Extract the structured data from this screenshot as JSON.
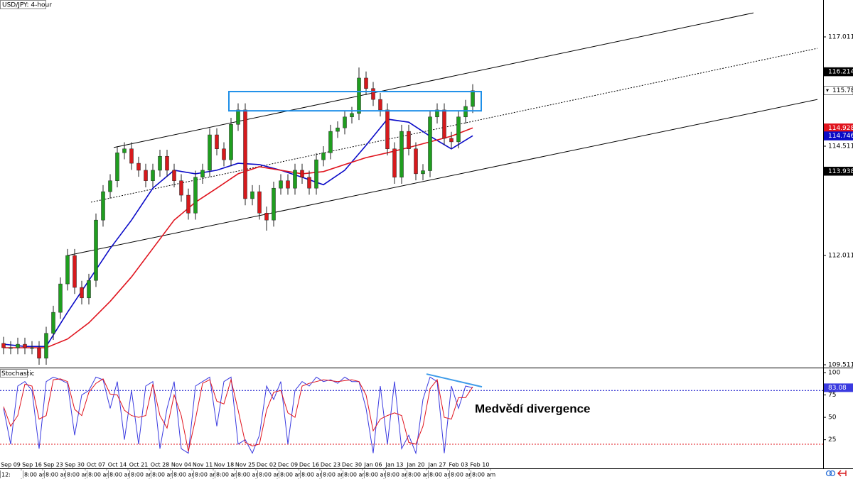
{
  "chart_data": [
    {
      "type": "candlestick",
      "title": "USD/JPY: 4-hour",
      "categories": [
        null,
        "Sep 09",
        null,
        null,
        "Sep 16",
        null,
        null,
        "Sep 23",
        null,
        null,
        "Sep 30",
        null,
        null,
        "Oct 07",
        null,
        null,
        "Oct 14",
        null,
        null,
        "Oct 21",
        null,
        null,
        "Oct 28",
        null,
        null,
        "Nov 04",
        null,
        null,
        "Nov 11",
        null,
        null,
        "Nov 18",
        null,
        null,
        "Nov 25",
        null,
        null,
        "Dec 02",
        null,
        null,
        "Dec 09",
        null,
        null,
        "Dec 16",
        null,
        null,
        "Dec 23",
        null,
        null,
        "Dec 30",
        null,
        null,
        "Jan 06",
        null,
        null,
        "Jan 13",
        null,
        null,
        "Jan 20",
        null,
        null,
        "Jan 27",
        null,
        null,
        "Feb 03",
        null,
        null,
        "Feb 10"
      ],
      "time_labels": [
        "12:",
        "8:00 am",
        "8:00 am",
        "8:00 am",
        "8:00 am",
        "8:00 am",
        "8:00 am",
        "8:00 am",
        "8:00 am",
        "8:00 am",
        "8:00 am",
        "8:00 am",
        "8:00 am",
        "8:00 am",
        "8:00 am",
        "8:00 am",
        "8:00 am",
        "8:00 am",
        "8:00 am",
        "8:00 am",
        "8:00 am",
        "8:00 am",
        "8:00 am"
      ],
      "open": [
        110.0,
        109.9,
        109.9,
        109.98,
        109.9,
        109.9,
        109.66,
        110.23,
        110.71,
        111.36,
        112.01,
        111.28,
        111.04,
        111.44,
        112.82,
        113.47,
        113.72,
        114.36,
        114.45,
        114.12,
        113.96,
        113.72,
        113.96,
        114.28,
        113.96,
        113.72,
        113.39,
        112.98,
        113.8,
        113.96,
        114.77,
        114.45,
        114.2,
        115.01,
        115.34,
        113.31,
        113.47,
        112.98,
        112.82,
        113.55,
        113.72,
        113.55,
        113.96,
        113.8,
        113.55,
        114.2,
        114.36,
        114.85,
        114.93,
        115.18,
        115.26,
        116.07,
        115.83,
        115.58,
        115.34,
        114.45,
        113.8,
        114.85,
        114.45,
        113.88,
        113.95,
        115.18,
        115.34,
        114.69,
        114.61,
        115.18,
        115.42,
        null
      ],
      "high": [
        110.15,
        110.05,
        110.13,
        110.13,
        110.05,
        110.05,
        110.38,
        110.86,
        111.51,
        112.16,
        112.16,
        111.43,
        111.59,
        112.97,
        113.62,
        113.87,
        114.51,
        114.6,
        114.6,
        114.27,
        114.11,
        114.11,
        114.43,
        114.43,
        114.11,
        113.87,
        113.54,
        113.95,
        114.11,
        114.92,
        114.92,
        114.6,
        115.16,
        115.49,
        115.49,
        113.62,
        113.62,
        113.13,
        113.7,
        113.87,
        113.87,
        114.11,
        114.11,
        113.95,
        114.35,
        114.51,
        115.0,
        115.08,
        115.33,
        115.41,
        116.31,
        116.22,
        115.98,
        115.73,
        115.49,
        114.6,
        115.0,
        115.0,
        114.6,
        114.1,
        115.33,
        115.49,
        115.49,
        114.84,
        115.33,
        115.57,
        115.93,
        null
      ],
      "low": [
        109.75,
        109.75,
        109.75,
        109.75,
        109.75,
        109.51,
        109.51,
        110.08,
        110.56,
        111.21,
        111.13,
        110.89,
        110.89,
        111.29,
        112.67,
        113.32,
        113.57,
        114.21,
        113.97,
        113.81,
        113.57,
        113.57,
        113.81,
        113.81,
        113.57,
        113.24,
        112.83,
        112.83,
        113.65,
        113.81,
        114.3,
        114.05,
        114.05,
        114.86,
        113.16,
        113.16,
        112.83,
        112.58,
        112.67,
        113.4,
        113.4,
        113.4,
        113.65,
        113.4,
        113.4,
        114.05,
        114.21,
        114.7,
        114.78,
        115.03,
        115.11,
        115.68,
        115.43,
        115.19,
        114.3,
        113.65,
        113.65,
        114.3,
        113.73,
        113.73,
        113.8,
        115.03,
        114.54,
        114.46,
        114.46,
        115.03,
        115.27,
        null
      ],
      "close": [
        109.9,
        109.9,
        109.98,
        109.9,
        109.9,
        109.66,
        110.23,
        110.71,
        111.36,
        112.01,
        111.28,
        111.04,
        111.44,
        112.82,
        113.47,
        113.72,
        114.36,
        114.45,
        114.12,
        113.96,
        113.72,
        113.96,
        114.28,
        113.96,
        113.72,
        113.39,
        112.98,
        113.8,
        113.96,
        114.77,
        114.45,
        114.2,
        115.01,
        115.34,
        113.31,
        113.47,
        112.98,
        112.82,
        113.55,
        113.72,
        113.55,
        113.96,
        113.8,
        113.55,
        114.2,
        114.36,
        114.85,
        114.93,
        115.18,
        115.26,
        116.07,
        115.83,
        115.58,
        115.34,
        114.45,
        113.8,
        114.85,
        114.45,
        113.88,
        113.95,
        115.18,
        115.34,
        114.69,
        114.61,
        115.18,
        115.42,
        115.78,
        null
      ],
      "up_color": "#1f9e1f",
      "down_color": "#d7191c",
      "series": [
        {
          "color": "#0a0ac8",
          "x": [
            0,
            3,
            6,
            9,
            12,
            15,
            18,
            21,
            24,
            27,
            30,
            33,
            36,
            39,
            42,
            45,
            48,
            51,
            54,
            57,
            60,
            63,
            66
          ],
          "values": [
            109.98,
            109.93,
            109.93,
            110.71,
            111.44,
            112.17,
            112.82,
            113.55,
            113.96,
            113.88,
            113.96,
            114.12,
            114.09,
            113.96,
            113.8,
            113.63,
            113.96,
            114.53,
            115.13,
            115.06,
            114.74,
            114.45,
            114.75
          ]
        },
        {
          "color": "#e0141e",
          "x": [
            0,
            3,
            6,
            9,
            12,
            15,
            18,
            21,
            24,
            27,
            30,
            33,
            36,
            39,
            42,
            45,
            48,
            51,
            54,
            57,
            60,
            63,
            66
          ],
          "values": [
            109.9,
            109.9,
            109.9,
            110.1,
            110.47,
            110.96,
            111.52,
            112.17,
            112.82,
            113.23,
            113.55,
            113.88,
            114.04,
            113.96,
            113.88,
            113.93,
            114.09,
            114.25,
            114.36,
            114.48,
            114.61,
            114.74,
            114.93
          ]
        }
      ],
      "lines": [
        {
          "x": [
            15.5,
            105.5
          ],
          "y": [
            114.48,
            117.56
          ],
          "color": "#000000",
          "dashed": false
        },
        {
          "x": [
            12.3,
            114.5
          ],
          "y": [
            113.23,
            116.75
          ],
          "color": "#000000",
          "dashed": true
        },
        {
          "x": [
            9,
            114.5
          ],
          "y": [
            112.01,
            115.58
          ],
          "color": "#000000",
          "dashed": false
        }
      ],
      "rectangle": {
        "x": [
          31.7,
          67.2
        ],
        "y": [
          115.32,
          115.76
        ],
        "color": "#1e8fe8"
      },
      "ylim": [
        109.446,
        117.855
      ],
      "yticks": [
        109.511,
        112.011,
        114.511,
        117.011
      ],
      "price_labels": [
        {
          "value": 116.214,
          "color": "#000000"
        },
        {
          "value": 115.782,
          "color": "#ffffff"
        },
        {
          "value": 114.928,
          "color": "#e0141e"
        },
        {
          "value": 114.746,
          "color": "#0a0ac8"
        },
        {
          "value": 113.938,
          "color": "#000000"
        }
      ]
    },
    {
      "type": "line",
      "title": "Stochastic",
      "series": [
        {
          "color": "#3a3ae0",
          "values": [
            60,
            20,
            85,
            90,
            80,
            15,
            90,
            95,
            92,
            88,
            30,
            75,
            80,
            95,
            92,
            60,
            90,
            25,
            80,
            20,
            85,
            90,
            15,
            60,
            90,
            15,
            10,
            85,
            90,
            95,
            40,
            90,
            95,
            20,
            25,
            10,
            30,
            85,
            70,
            90,
            20,
            80,
            90,
            85,
            95,
            90,
            92,
            88,
            95,
            90,
            90,
            60,
            10,
            85,
            20,
            90,
            15,
            30,
            10,
            70,
            95,
            90,
            10,
            85,
            60,
            85,
            83.08,
            null
          ]
        },
        {
          "color": "#e0141e",
          "values": [
            62,
            40,
            52,
            87,
            85,
            48,
            52,
            92,
            93,
            90,
            59,
            52,
            78,
            88,
            93,
            76,
            75,
            58,
            52,
            50,
            52,
            87,
            52,
            38,
            75,
            52,
            12,
            48,
            88,
            92,
            68,
            65,
            92,
            58,
            22,
            18,
            20,
            58,
            78,
            80,
            55,
            50,
            85,
            88,
            90,
            92,
            91,
            90,
            91,
            92,
            90,
            75,
            35,
            48,
            52,
            55,
            52,
            22,
            20,
            40,
            82,
            92,
            50,
            48,
            72,
            72,
            84,
            null
          ]
        }
      ],
      "levels": [
        {
          "value": 80,
          "color": "#0a0ac8"
        },
        {
          "value": 20,
          "color": "#e0141e"
        }
      ],
      "ylim": [
        -7,
        104
      ],
      "yticks": [
        25,
        50,
        75,
        100
      ],
      "divergence": {
        "x": [
          59.5,
          67.3
        ],
        "y": [
          98.4,
          84.1
        ],
        "color": "#3d9be9"
      },
      "annotation": "Medvědí divergence"
    }
  ]
}
